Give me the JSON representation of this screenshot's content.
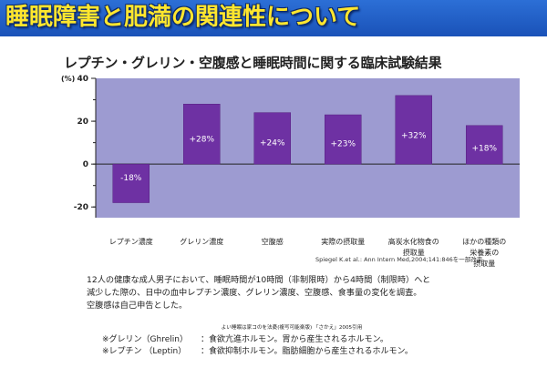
{
  "banner": {
    "title": "睡眠障害と肥満の関連性について"
  },
  "chart_data": {
    "type": "bar",
    "title": "レプチン・グレリン・空腹感と睡眠時間に関する臨床試験結果",
    "ylabel": "(%)",
    "ylim": [
      -25,
      40
    ],
    "yticks": [
      -20,
      0,
      20,
      40
    ],
    "categories": [
      [
        "レプチン濃度"
      ],
      [
        "グレリン濃度"
      ],
      [
        "空腹感"
      ],
      [
        "実際の摂取量"
      ],
      [
        "高炭水化物食の",
        "摂取量"
      ],
      [
        "ほかの種類の",
        "栄養素の",
        "摂取量"
      ]
    ],
    "values": [
      -18,
      28,
      24,
      23,
      32,
      18
    ],
    "data_labels": [
      "-18%",
      "+28%",
      "+24%",
      "+23%",
      "+32%",
      "+18%"
    ],
    "colors": {
      "panel": "#9d9bd1",
      "bar": "#6e31a3",
      "bar_edge": "#57207f"
    },
    "grid": false
  },
  "citation": "Spiegel K.et al.: Ann Intern Med,2004;141:846を一部改変",
  "description": [
    "12人の健康な成人男子において、睡眠時間が10時間（非制限時）から4時間（制限時）へと",
    "減少した際の、日中の血中レプチン濃度、グレリン濃度、空腹感、食事量の変化を調査。",
    "空腹感は自己申告とした。"
  ],
  "source_note": "よい睡眠は家コのを法憂(複写可能楽版) 「さかえ」2005引用",
  "notes": [
    {
      "term": "※グレリン（Ghrelin）",
      "desc": "：食欲亢進ホルモン。胃から産生されるホルモン。"
    },
    {
      "term": "※レプチン （Leptin）",
      "desc": "：食欲抑制ホルモン。脂肪細胞から産生されるホルモン。"
    }
  ]
}
